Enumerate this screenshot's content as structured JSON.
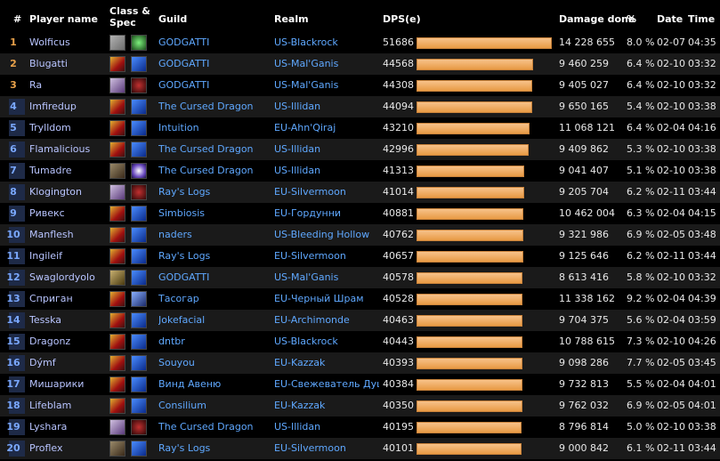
{
  "header": {
    "rank": "#",
    "player": "Player name",
    "class_line1": "Class &",
    "class_line2": "Spec",
    "guild": "Guild",
    "realm": "Realm",
    "dps": "DPS(e)",
    "damage": "Damage done",
    "pct": "%",
    "date": "Date",
    "time": "Time"
  },
  "dps_max": 51686,
  "rows": [
    {
      "rank": "1",
      "name": "Wolficus",
      "icon1": "ic-rogue",
      "icon2": "ic-shadow",
      "guild": "GODGATTI",
      "realm": "US-Blackrock",
      "dps": "51686",
      "dps_value": 51686,
      "damage": "14 228 655",
      "pct": "8.0 %",
      "date": "02-07",
      "time": "04:35"
    },
    {
      "rank": "2",
      "name": "Blugatti",
      "icon1": "ic-fire",
      "icon2": "ic-frost",
      "guild": "GODGATTI",
      "realm": "US-Mal'Ganis",
      "dps": "44568",
      "dps_value": 44568,
      "damage": "9 460 259",
      "pct": "6.4 %",
      "date": "02-10",
      "time": "03:32"
    },
    {
      "rank": "3",
      "name": "Ra",
      "icon1": "ic-dh",
      "icon2": "ic-havoc",
      "guild": "GODGATTI",
      "realm": "US-Mal'Ganis",
      "dps": "44308",
      "dps_value": 44308,
      "damage": "9 405 027",
      "pct": "6.4 %",
      "date": "02-10",
      "time": "03:32"
    },
    {
      "rank": "4",
      "name": "Imfiredup",
      "icon1": "ic-fire",
      "icon2": "ic-frost",
      "guild": "The Cursed Dragon",
      "realm": "US-Illidan",
      "dps": "44094",
      "dps_value": 44094,
      "damage": "9 650 165",
      "pct": "5.4 %",
      "date": "02-10",
      "time": "03:38"
    },
    {
      "rank": "5",
      "name": "Trylldom",
      "icon1": "ic-fire",
      "icon2": "ic-frost",
      "guild": "Intuition",
      "realm": "EU-Ahn'Qiraj",
      "dps": "43210",
      "dps_value": 43210,
      "damage": "11 068 121",
      "pct": "6.4 %",
      "date": "02-04",
      "time": "04:16"
    },
    {
      "rank": "6",
      "name": "Flamalicious",
      "icon1": "ic-fire",
      "icon2": "ic-frost",
      "guild": "The Cursed Dragon",
      "realm": "US-Illidan",
      "dps": "42996",
      "dps_value": 42996,
      "damage": "9 409 862",
      "pct": "5.3 %",
      "date": "02-10",
      "time": "03:38"
    },
    {
      "rank": "7",
      "name": "Tumadre",
      "icon1": "ic-hunter",
      "icon2": "ic-spark",
      "guild": "The Cursed Dragon",
      "realm": "US-Illidan",
      "dps": "41313",
      "dps_value": 41313,
      "damage": "9 041 407",
      "pct": "5.1 %",
      "date": "02-10",
      "time": "03:38"
    },
    {
      "rank": "8",
      "name": "Klogington",
      "icon1": "ic-dh",
      "icon2": "ic-havoc",
      "guild": "Ray's Logs",
      "realm": "EU-Silvermoon",
      "dps": "41014",
      "dps_value": 41014,
      "damage": "9 205 704",
      "pct": "6.2 %",
      "date": "02-11",
      "time": "03:44"
    },
    {
      "rank": "9",
      "name": "Ривекс",
      "icon1": "ic-fire",
      "icon2": "ic-frost",
      "guild": "Simbiosis",
      "realm": "EU-Гордунни",
      "dps": "40881",
      "dps_value": 40881,
      "damage": "10 462 004",
      "pct": "6.3 %",
      "date": "02-04",
      "time": "04:15"
    },
    {
      "rank": "10",
      "name": "Manflesh",
      "icon1": "ic-fire",
      "icon2": "ic-frost",
      "guild": "naders",
      "realm": "US-Bleeding Hollow",
      "dps": "40762",
      "dps_value": 40762,
      "damage": "9 321 986",
      "pct": "6.9 %",
      "date": "02-05",
      "time": "03:48"
    },
    {
      "rank": "11",
      "name": "Ingileif",
      "icon1": "ic-fire",
      "icon2": "ic-frost",
      "guild": "Ray's Logs",
      "realm": "EU-Silvermoon",
      "dps": "40657",
      "dps_value": 40657,
      "damage": "9 125 646",
      "pct": "6.2 %",
      "date": "02-11",
      "time": "03:44"
    },
    {
      "rank": "12",
      "name": "Swaglordyolo",
      "icon1": "ic-warlock",
      "icon2": "ic-frost",
      "guild": "GODGATTI",
      "realm": "US-Mal'Ganis",
      "dps": "40578",
      "dps_value": 40578,
      "damage": "8 613 416",
      "pct": "5.8 %",
      "date": "02-10",
      "time": "03:32"
    },
    {
      "rank": "13",
      "name": "Сприган",
      "icon1": "ic-fire",
      "icon2": "ic-spear",
      "guild": "Тасогар",
      "realm": "EU-Черный Шрам",
      "dps": "40528",
      "dps_value": 40528,
      "damage": "11 338 162",
      "pct": "9.2 %",
      "date": "02-04",
      "time": "04:39"
    },
    {
      "rank": "14",
      "name": "Tesska",
      "icon1": "ic-fire",
      "icon2": "ic-frost",
      "guild": "Jokefacial",
      "realm": "EU-Archimonde",
      "dps": "40463",
      "dps_value": 40463,
      "damage": "9 704 375",
      "pct": "5.6 %",
      "date": "02-04",
      "time": "03:59"
    },
    {
      "rank": "15",
      "name": "Dragonz",
      "icon1": "ic-fire",
      "icon2": "ic-frost",
      "guild": "dntbr",
      "realm": "US-Blackrock",
      "dps": "40443",
      "dps_value": 40443,
      "damage": "10 788 615",
      "pct": "7.3 %",
      "date": "02-10",
      "time": "04:26"
    },
    {
      "rank": "16",
      "name": "Dýmf",
      "icon1": "ic-fire",
      "icon2": "ic-frost",
      "guild": "Souyou",
      "realm": "EU-Kazzak",
      "dps": "40393",
      "dps_value": 40393,
      "damage": "9 098 286",
      "pct": "7.7 %",
      "date": "02-05",
      "time": "03:45"
    },
    {
      "rank": "17",
      "name": "Мишарики",
      "icon1": "ic-fire",
      "icon2": "ic-frost",
      "guild": "Винд Авеню",
      "realm": "EU-Свежеватель Душ",
      "dps": "40384",
      "dps_value": 40384,
      "damage": "9 732 813",
      "pct": "5.5 %",
      "date": "02-04",
      "time": "04:01"
    },
    {
      "rank": "18",
      "name": "Lifeblam",
      "icon1": "ic-fire",
      "icon2": "ic-frost",
      "guild": "Consilium",
      "realm": "EU-Kazzak",
      "dps": "40350",
      "dps_value": 40350,
      "damage": "9 762 032",
      "pct": "6.9 %",
      "date": "02-05",
      "time": "04:01"
    },
    {
      "rank": "19",
      "name": "Lyshara",
      "icon1": "ic-dh",
      "icon2": "ic-havoc",
      "guild": "The Cursed Dragon",
      "realm": "US-Illidan",
      "dps": "40195",
      "dps_value": 40195,
      "damage": "8 796 814",
      "pct": "5.0 %",
      "date": "02-10",
      "time": "03:38"
    },
    {
      "rank": "20",
      "name": "Proflex",
      "icon1": "ic-hunter",
      "icon2": "ic-frost",
      "guild": "Ray's Logs",
      "realm": "EU-Silvermoon",
      "dps": "40101",
      "dps_value": 40101,
      "damage": "9 000 842",
      "pct": "6.1 %",
      "date": "02-11",
      "time": "03:44"
    }
  ]
}
